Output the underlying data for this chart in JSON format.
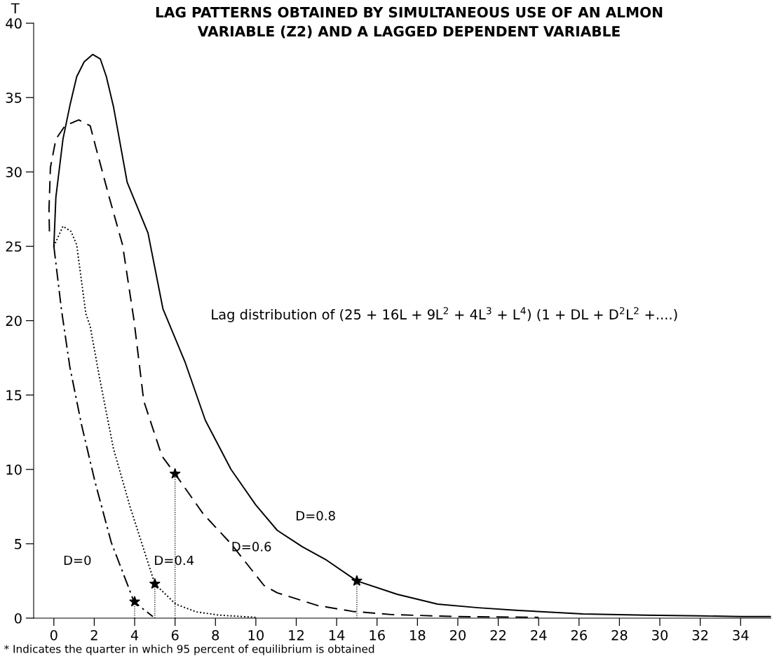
{
  "chart_data": {
    "type": "line",
    "title": "LAG PATTERNS OBTAINED BY SIMULTANEOUS USE OF AN ALMON\nVARIABLE (Z2) AND A LAGGED DEPENDENT VARIABLE",
    "ylabel": "T",
    "xlim": [
      -1,
      35.5
    ],
    "ylim": [
      0,
      40
    ],
    "xticks": [
      0,
      2,
      4,
      6,
      8,
      10,
      12,
      14,
      16,
      18,
      20,
      22,
      24,
      26,
      28,
      30,
      32,
      34
    ],
    "yticks": [
      0,
      5,
      10,
      15,
      20,
      25,
      30,
      35,
      40
    ],
    "grid": false,
    "legend": false,
    "series": [
      {
        "name": "D=0.8",
        "color": "#000000",
        "line_style": "solid",
        "x": [
          0,
          0.1,
          0.45,
          0.8,
          1.13,
          1.5,
          1.92,
          2.3,
          2.6,
          2.95,
          3.63,
          4.66,
          5.4,
          6.5,
          7.5,
          8.77,
          10.0,
          11.06,
          12.3,
          13.5,
          15.0,
          17.0,
          19.0,
          21.0,
          23.0,
          26.2,
          29.3,
          32.0,
          34.0,
          35.5
        ],
        "values": [
          25,
          28.3,
          32.2,
          34.5,
          36.4,
          37.4,
          37.9,
          37.6,
          36.4,
          34.4,
          29.3,
          25.9,
          20.8,
          17.2,
          13.3,
          10.0,
          7.6,
          5.9,
          4.8,
          3.9,
          2.5,
          1.6,
          0.94,
          0.7,
          0.52,
          0.28,
          0.2,
          0.15,
          0.1,
          0.1
        ]
      },
      {
        "name": "D=0.6",
        "color": "#000000",
        "line_style": "dashed",
        "x": [
          -0.22,
          -0.24,
          -0.17,
          0.1,
          0.55,
          1.23,
          1.8,
          2.05,
          2.74,
          3.4,
          3.97,
          4.45,
          5.35,
          6.0,
          7.4,
          8.77,
          10.4,
          11.06,
          13.05,
          14.8,
          16.7,
          20.0,
          24.0
        ],
        "values": [
          26,
          27.5,
          30.3,
          32.2,
          33.1,
          33.5,
          33.1,
          31.8,
          28.3,
          25.1,
          20.0,
          14.6,
          10.9,
          9.7,
          7.0,
          5.0,
          2.2,
          1.7,
          0.85,
          0.45,
          0.24,
          0.1,
          0.05
        ]
      },
      {
        "name": "D=0.4",
        "color": "#000000",
        "line_style": "dotted",
        "x": [
          0,
          0.45,
          0.85,
          1.13,
          1.58,
          1.8,
          2.27,
          2.95,
          3.77,
          5.0,
          6.03,
          7.05,
          8.2,
          10.0
        ],
        "values": [
          25,
          26.35,
          26.0,
          25.1,
          20.5,
          19.6,
          16.1,
          11.4,
          7.5,
          2.3,
          0.94,
          0.42,
          0.2,
          0.05
        ]
      },
      {
        "name": "D=0",
        "color": "#000000",
        "line_style": "dashdot",
        "x": [
          0,
          0.38,
          0.79,
          1.37,
          2.05,
          2.84,
          3.97,
          4.9
        ],
        "values": [
          25,
          20.7,
          16.9,
          13.0,
          9.1,
          5.1,
          1.1,
          0.1
        ]
      },
      {
        "type": "lollipop",
        "color": "#000000",
        "marker": "star",
        "line_style": "dotted",
        "x": [
          4,
          5,
          6,
          15
        ],
        "values": [
          1.1,
          2.3,
          9.7,
          2.5
        ]
      }
    ],
    "annotations": [
      "Lag distribution of (25 + 16L + 9L$^{2}$ + 4L$^{3}$ + L$^{4}$) (1 + DL + D$^{2}$L$^{2}$ +....)",
      "* Indicates the quarter in which 95 percent of equilibrium is obtained"
    ]
  }
}
